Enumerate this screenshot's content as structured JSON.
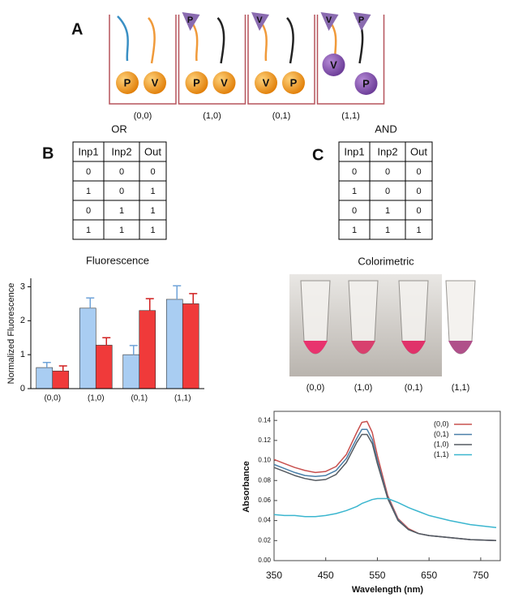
{
  "panel_labels": [
    "A",
    "B",
    "C"
  ],
  "diagram": {
    "states": [
      "(0,0)",
      "(1,0)",
      "(0,1)",
      "(1,1)"
    ],
    "beads": [
      [
        "P",
        "V"
      ],
      [
        "P",
        "V"
      ],
      [
        "V",
        "P"
      ],
      [
        "V",
        "P"
      ]
    ],
    "triangles": [
      [],
      [
        "P"
      ],
      [
        "V"
      ],
      [
        "V",
        "P"
      ]
    ]
  },
  "tables": [
    {
      "title": "OR",
      "header": [
        "Inp1",
        "Inp2",
        "Out"
      ],
      "rows": [
        [
          0,
          0,
          0
        ],
        [
          1,
          0,
          1
        ],
        [
          0,
          1,
          1
        ],
        [
          1,
          1,
          1
        ]
      ]
    },
    {
      "title": "AND",
      "header": [
        "Inp1",
        "Inp2",
        "Out"
      ],
      "rows": [
        [
          0,
          0,
          0
        ],
        [
          1,
          0,
          0
        ],
        [
          0,
          1,
          0
        ],
        [
          1,
          1,
          1
        ]
      ]
    }
  ],
  "colorimetric": {
    "title": "Colorimetric",
    "labels": [
      "(0,0)",
      "(1,0)",
      "(0,1)",
      "(1,1)"
    ]
  },
  "chart_data": [
    {
      "type": "bar",
      "title": "Fluorescence",
      "y_label": "Normalized Fluorescence",
      "categories": [
        "(0,0)",
        "(1,0)",
        "(0,1)",
        "(1,1)"
      ],
      "series": [
        {
          "color": "#a9cdf2",
          "values": [
            0.62,
            2.37,
            1.0,
            2.63
          ],
          "errors": [
            0.15,
            0.3,
            0.27,
            0.4
          ]
        },
        {
          "color": "#f03a3a",
          "values": [
            0.52,
            1.28,
            2.3,
            2.5
          ],
          "errors": [
            0.15,
            0.22,
            0.35,
            0.3
          ]
        }
      ],
      "ylim": [
        0,
        3.25
      ],
      "yticks": [
        0,
        1,
        2,
        3
      ]
    },
    {
      "type": "line",
      "x_label": "Wavelength (nm)",
      "y_label": "Absorbance",
      "x": [
        350,
        370,
        390,
        410,
        430,
        450,
        470,
        490,
        510,
        520,
        530,
        540,
        550,
        570,
        590,
        610,
        630,
        650,
        690,
        730,
        780
      ],
      "series": [
        {
          "name": "(0,0)",
          "color": "#c8504e",
          "values": [
            0.101,
            0.097,
            0.093,
            0.09,
            0.088,
            0.089,
            0.094,
            0.106,
            0.128,
            0.138,
            0.139,
            0.128,
            0.105,
            0.065,
            0.042,
            0.032,
            0.027,
            0.025,
            0.023,
            0.021,
            0.02
          ]
        },
        {
          "name": "(0,1)",
          "color": "#4a7fa8",
          "values": [
            0.096,
            0.092,
            0.088,
            0.085,
            0.084,
            0.085,
            0.09,
            0.102,
            0.122,
            0.131,
            0.131,
            0.121,
            0.1,
            0.063,
            0.041,
            0.031,
            0.027,
            0.025,
            0.023,
            0.021,
            0.02
          ]
        },
        {
          "name": "(1,0)",
          "color": "#555a60",
          "values": [
            0.093,
            0.089,
            0.085,
            0.082,
            0.08,
            0.081,
            0.086,
            0.098,
            0.118,
            0.126,
            0.126,
            0.117,
            0.097,
            0.062,
            0.04,
            0.031,
            0.027,
            0.025,
            0.023,
            0.021,
            0.02
          ]
        },
        {
          "name": "(1,1)",
          "color": "#3bb6cf",
          "values": [
            0.046,
            0.045,
            0.045,
            0.044,
            0.044,
            0.045,
            0.047,
            0.05,
            0.054,
            0.057,
            0.059,
            0.061,
            0.062,
            0.062,
            0.058,
            0.053,
            0.049,
            0.045,
            0.04,
            0.036,
            0.033
          ]
        }
      ],
      "xlim": [
        350,
        780
      ],
      "xticks": [
        350,
        450,
        550,
        650,
        750
      ],
      "ylim": [
        0,
        0.145
      ],
      "yticks": [
        {
          "value": 0,
          "label": "0.00"
        },
        {
          "value": 0.02,
          "label": "0.02"
        },
        {
          "value": 0.04,
          "label": "0.04"
        },
        {
          "value": 0.06,
          "label": "0.06"
        },
        {
          "value": 0.08,
          "label": "0.08"
        },
        {
          "value": 0.1,
          "label": "0.10"
        },
        {
          "value": 0.12,
          "label": "0.12"
        },
        {
          "value": 0.14,
          "label": "0.14"
        }
      ],
      "legend": "top-right"
    }
  ]
}
